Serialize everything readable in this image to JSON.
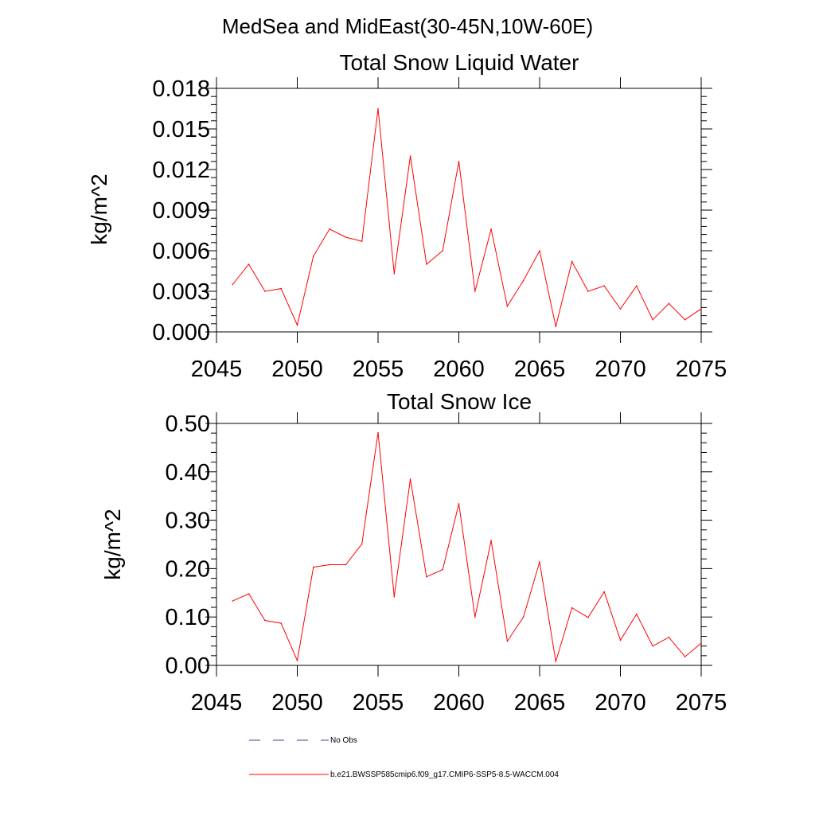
{
  "suptitle": "MedSea and MidEast(30-45N,10W-60E)",
  "colors": {
    "series": "#ff0000",
    "no_obs": "#3b4a8a",
    "axis": "#000000"
  },
  "legend": {
    "placement": "bottom-left",
    "items": [
      {
        "label": "No Obs",
        "style": "dashed",
        "color": "#3b4a8a"
      },
      {
        "label": "b.e21.BWSSP585cmip6.f09_g17.CMIP6-SSP5-8.5-WACCM.004",
        "style": "solid",
        "color": "#ff0000"
      }
    ]
  },
  "chart_data": [
    {
      "type": "line",
      "title": "Total Snow Liquid Water",
      "xlabel": "",
      "ylabel": "kg/m^2",
      "xlim": [
        2045,
        2075
      ],
      "ylim": [
        0.0,
        0.018
      ],
      "xticks": [
        2045,
        2050,
        2055,
        2060,
        2065,
        2070,
        2075
      ],
      "xtick_labels": [
        "2045",
        "2050",
        "2055",
        "2060",
        "2065",
        "2070",
        "2075"
      ],
      "yticks": [
        0.0,
        0.003,
        0.006,
        0.009,
        0.012,
        0.015,
        0.018
      ],
      "ytick_labels": [
        "0.000",
        "0.003",
        "0.006",
        "0.009",
        "0.012",
        "0.015",
        "0.018"
      ],
      "series": [
        {
          "name": "b.e21.BWSSP585cmip6.f09_g17.CMIP6-SSP5-8.5-WACCM.004",
          "x": [
            2046,
            2047,
            2048,
            2049,
            2050,
            2051,
            2052,
            2053,
            2054,
            2055,
            2056,
            2057,
            2058,
            2059,
            2060,
            2061,
            2062,
            2063,
            2064,
            2065,
            2066,
            2067,
            2068,
            2069,
            2070,
            2071,
            2072,
            2073,
            2074,
            2075
          ],
          "values": [
            0.0035,
            0.005,
            0.003,
            0.0032,
            0.0005,
            0.0056,
            0.0076,
            0.007,
            0.0067,
            0.0165,
            0.0043,
            0.013,
            0.005,
            0.006,
            0.0126,
            0.003,
            0.0076,
            0.0019,
            0.0038,
            0.006,
            0.0004,
            0.0052,
            0.003,
            0.0034,
            0.0017,
            0.0034,
            0.0009,
            0.0021,
            0.0009,
            0.0017
          ]
        }
      ]
    },
    {
      "type": "line",
      "title": "Total Snow Ice",
      "xlabel": "",
      "ylabel": "kg/m^2",
      "xlim": [
        2045,
        2075
      ],
      "ylim": [
        0.0,
        0.5
      ],
      "xticks": [
        2045,
        2050,
        2055,
        2060,
        2065,
        2070,
        2075
      ],
      "xtick_labels": [
        "2045",
        "2050",
        "2055",
        "2060",
        "2065",
        "2070",
        "2075"
      ],
      "yticks": [
        0.0,
        0.1,
        0.2,
        0.3,
        0.4,
        0.5
      ],
      "ytick_labels": [
        "0.00",
        "0.10",
        "0.20",
        "0.30",
        "0.40",
        "0.50"
      ],
      "series": [
        {
          "name": "b.e21.BWSSP585cmip6.f09_g17.CMIP6-SSP5-8.5-WACCM.004",
          "x": [
            2046,
            2047,
            2048,
            2049,
            2050,
            2051,
            2052,
            2053,
            2054,
            2055,
            2056,
            2057,
            2058,
            2059,
            2060,
            2061,
            2062,
            2063,
            2064,
            2065,
            2066,
            2067,
            2068,
            2069,
            2070,
            2071,
            2072,
            2073,
            2074,
            2075
          ],
          "values": [
            0.133,
            0.148,
            0.093,
            0.087,
            0.01,
            0.203,
            0.208,
            0.208,
            0.251,
            0.481,
            0.142,
            0.385,
            0.183,
            0.198,
            0.334,
            0.1,
            0.258,
            0.05,
            0.1,
            0.214,
            0.008,
            0.119,
            0.099,
            0.152,
            0.052,
            0.106,
            0.04,
            0.058,
            0.018,
            0.046
          ]
        }
      ]
    }
  ]
}
